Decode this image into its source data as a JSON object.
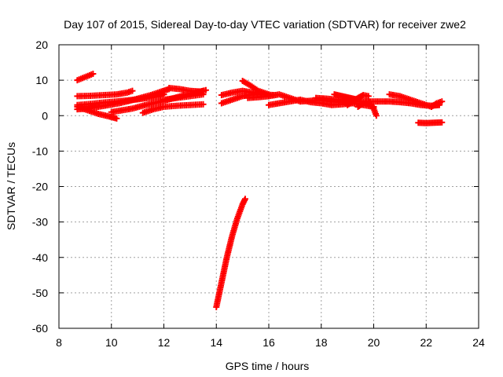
{
  "chart_data": {
    "type": "scatter",
    "title": "Day 107 of 2015, Sidereal Day-to-day VTEC variation (SDTVAR) for receiver zwe2",
    "xlabel": "GPS time / hours",
    "ylabel": "SDTVAR / TECUs",
    "xlim": [
      8,
      24
    ],
    "ylim": [
      -60,
      20
    ],
    "xticks": [
      8,
      10,
      12,
      14,
      16,
      18,
      20,
      22,
      24
    ],
    "yticks": [
      -60,
      -50,
      -40,
      -30,
      -20,
      -10,
      0,
      10,
      20
    ],
    "grid": true,
    "marker": "plus",
    "color": "#ff0000",
    "series": [
      {
        "x": [
          8.7,
          8.9,
          9.1,
          9.3
        ],
        "y": [
          10,
          10.6,
          11.2,
          11.8
        ]
      },
      {
        "x": [
          8.7,
          9.2,
          9.7,
          10.2,
          10.6,
          10.8
        ],
        "y": [
          5.5,
          5.6,
          5.8,
          6.0,
          6.5,
          7.0
        ]
      },
      {
        "x": [
          8.7,
          9.2,
          9.7,
          10.2,
          10.6,
          11.0,
          11.4,
          11.8,
          12.0
        ],
        "y": [
          3.0,
          3.3,
          3.7,
          4.0,
          4.3,
          4.6,
          5.0,
          5.5,
          6.0
        ]
      },
      {
        "x": [
          8.7,
          9.1,
          9.5,
          9.9,
          10.2
        ],
        "y": [
          2.5,
          1.5,
          0.5,
          -0.2,
          -0.8
        ]
      },
      {
        "x": [
          8.7,
          9.1,
          9.5,
          9.9,
          10.3,
          10.7,
          11.1,
          11.5,
          11.9,
          12.2
        ],
        "y": [
          1.8,
          2.0,
          2.5,
          3.0,
          3.5,
          4.2,
          5.0,
          5.8,
          6.8,
          7.5
        ]
      },
      {
        "x": [
          10.0,
          10.4,
          10.8,
          11.2,
          11.6,
          12.0,
          12.4,
          12.8,
          13.2,
          13.5
        ],
        "y": [
          1.0,
          1.5,
          2.0,
          2.8,
          3.5,
          4.2,
          5.0,
          5.8,
          6.5,
          7.0
        ]
      },
      {
        "x": [
          11.2,
          11.6,
          12.0,
          12.5,
          13.0,
          13.5
        ],
        "y": [
          0.8,
          1.8,
          2.5,
          2.8,
          3.0,
          3.2
        ]
      },
      {
        "x": [
          12.2,
          12.6,
          13.0,
          13.4,
          13.6
        ],
        "y": [
          7.8,
          7.5,
          7.0,
          6.8,
          7.2
        ]
      },
      {
        "x": [
          12.0,
          12.5,
          13.0,
          13.5
        ],
        "y": [
          4.5,
          5.0,
          5.5,
          6.0
        ]
      },
      {
        "x": [
          14.0,
          14.1,
          14.2,
          14.3,
          14.4,
          14.5,
          14.6,
          14.7,
          14.8,
          14.9,
          15.0,
          15.1
        ],
        "y": [
          -54,
          -50.5,
          -47,
          -43.5,
          -40,
          -37,
          -34,
          -31.5,
          -29,
          -27,
          -25,
          -23.5
        ]
      },
      {
        "x": [
          14.2,
          14.6,
          15.0,
          15.4,
          15.8
        ],
        "y": [
          3.5,
          4.5,
          5.5,
          6.0,
          6.2
        ]
      },
      {
        "x": [
          14.2,
          14.6,
          15.0,
          15.4,
          15.8,
          16.2
        ],
        "y": [
          5.8,
          6.5,
          7.0,
          6.5,
          6.0,
          5.8
        ]
      },
      {
        "x": [
          15.0,
          15.3,
          15.6,
          16.0
        ],
        "y": [
          9.8,
          8.5,
          7.0,
          6.0
        ]
      },
      {
        "x": [
          15.2,
          15.6,
          16.0,
          16.4,
          16.8,
          17.2,
          17.6,
          18.0,
          18.4,
          18.8,
          19.2
        ],
        "y": [
          5.0,
          5.2,
          5.5,
          6.0,
          5.0,
          4.0,
          4.2,
          4.5,
          4.0,
          3.8,
          4.0
        ]
      },
      {
        "x": [
          16.0,
          16.4,
          16.8,
          17.2,
          17.6,
          18.0,
          18.4,
          18.8,
          19.2,
          19.6,
          20.0
        ],
        "y": [
          3.0,
          3.5,
          4.0,
          4.5,
          3.8,
          3.5,
          3.0,
          3.2,
          3.5,
          3.0,
          2.5
        ]
      },
      {
        "x": [
          17.8,
          18.2,
          18.6,
          19.0,
          19.4,
          19.8,
          20.2,
          20.6,
          21.0,
          21.4,
          21.8,
          22.2,
          22.5
        ],
        "y": [
          5.0,
          4.8,
          4.5,
          4.2,
          4.0,
          4.0,
          4.0,
          4.0,
          3.8,
          3.5,
          3.0,
          2.8,
          3.0
        ]
      },
      {
        "x": [
          18.5,
          18.8,
          19.1,
          19.4
        ],
        "y": [
          6.0,
          5.5,
          5.0,
          4.5
        ]
      },
      {
        "x": [
          19.4,
          19.6,
          19.8,
          20.0,
          20.1
        ],
        "y": [
          2.5,
          3.5,
          4.0,
          2.0,
          0
        ]
      },
      {
        "x": [
          19.0,
          19.2,
          19.4,
          19.6,
          19.8
        ],
        "y": [
          3.0,
          4.0,
          5.0,
          5.8,
          5.5
        ]
      },
      {
        "x": [
          20.6,
          21.0,
          21.4,
          21.8,
          22.2
        ],
        "y": [
          6.0,
          5.5,
          4.5,
          3.5,
          2.5
        ]
      },
      {
        "x": [
          22.2,
          22.4,
          22.6
        ],
        "y": [
          2.5,
          3.5,
          4.0
        ]
      },
      {
        "x": [
          21.7,
          22.0,
          22.3,
          22.6
        ],
        "y": [
          -2.0,
          -2.1,
          -2.0,
          -1.9
        ]
      }
    ]
  }
}
